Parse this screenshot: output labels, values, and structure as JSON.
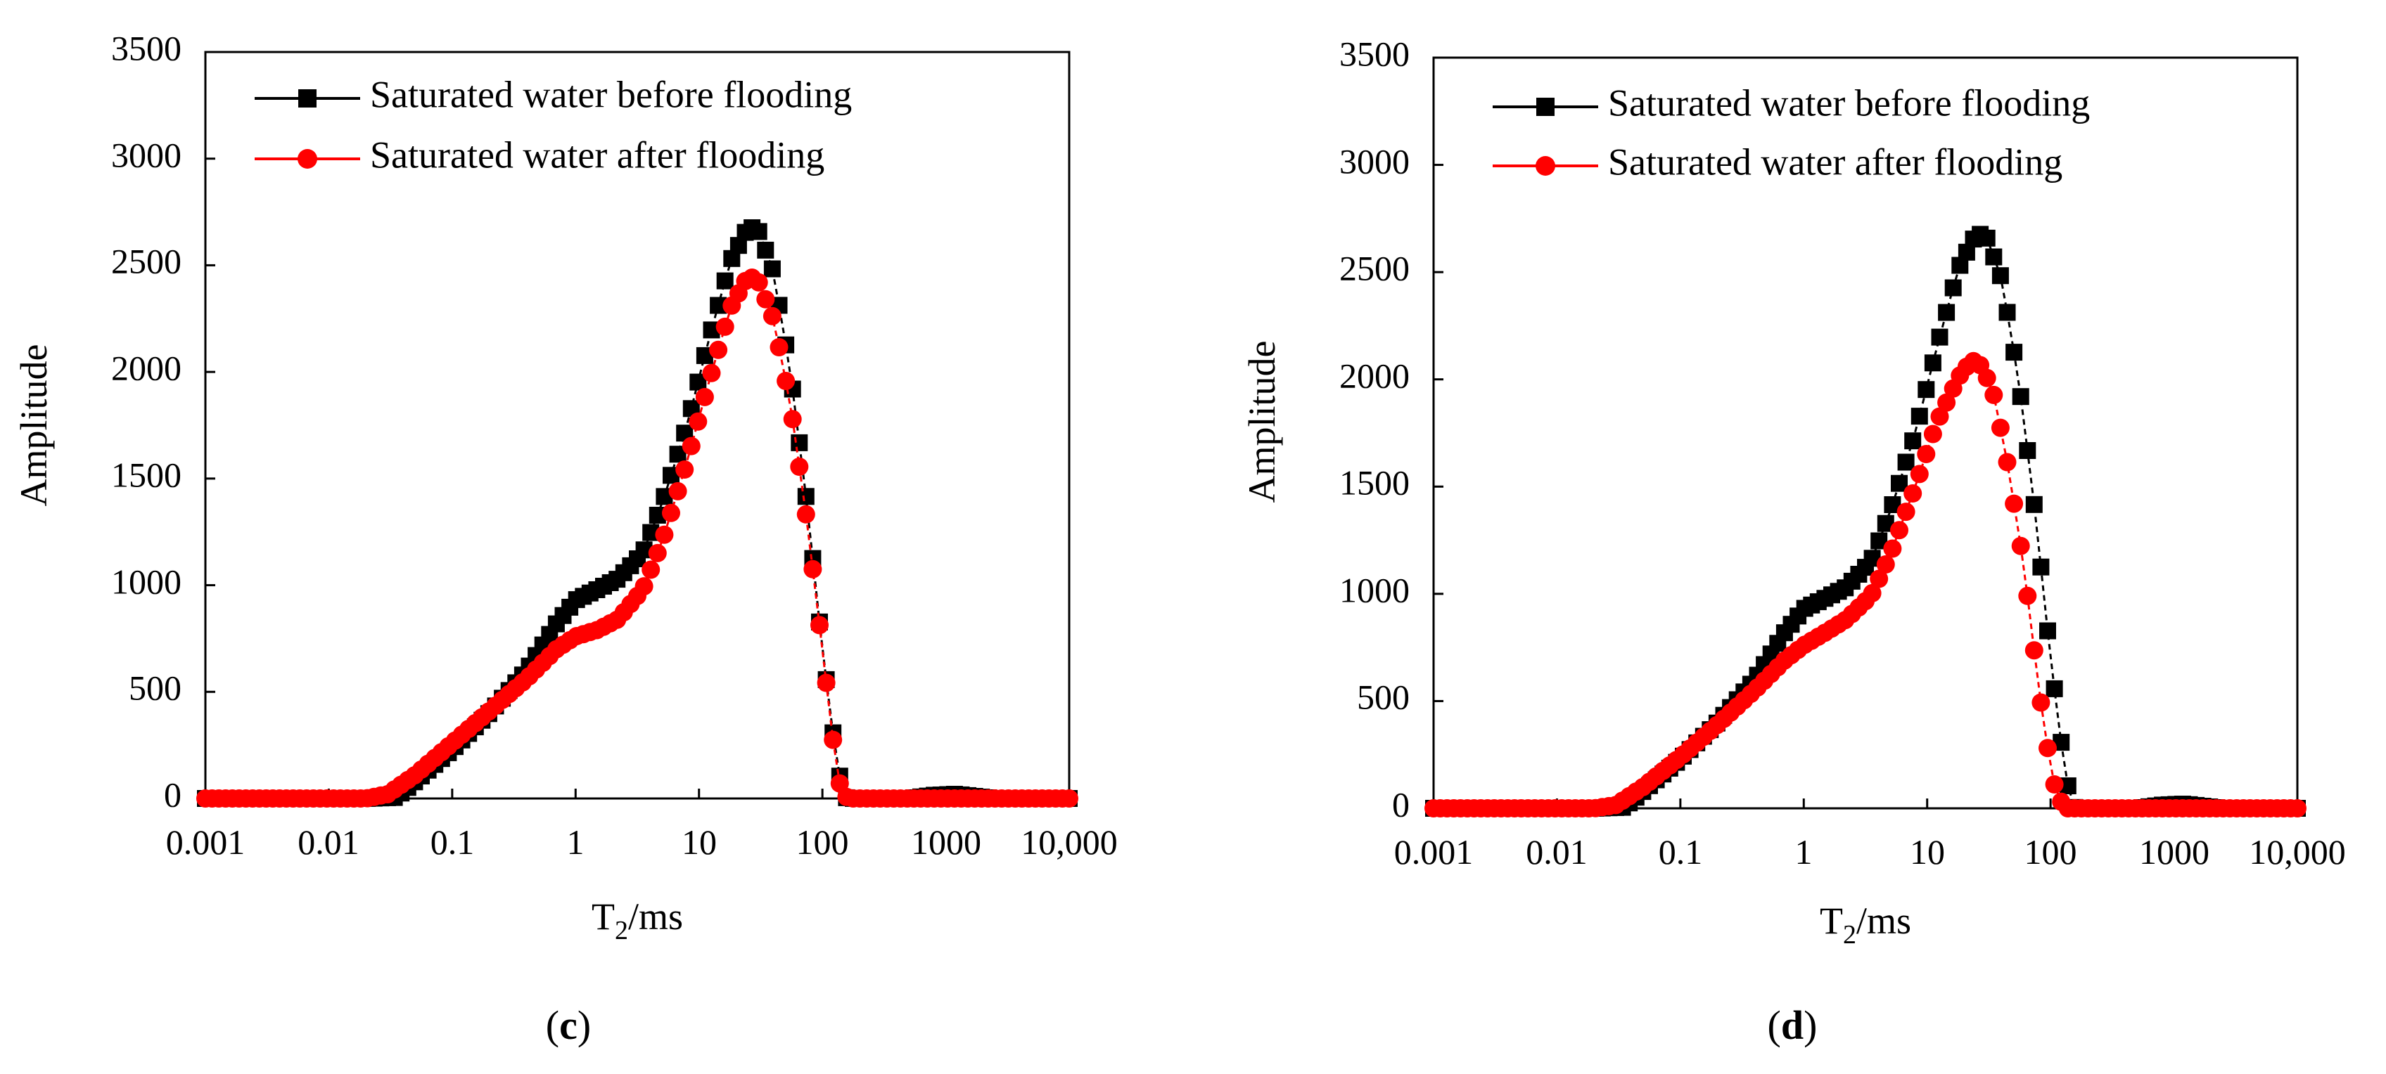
{
  "chart_data": [
    {
      "type": "line",
      "panel_label": {
        "open": "(",
        "letter": "c",
        "close": ")"
      },
      "xlabel": {
        "main": "T",
        "sub": "2",
        "rest": "/ms"
      },
      "ylabel": "Amplitude",
      "x_scale": "log",
      "xlim": [
        0.001,
        10000
      ],
      "ylim": [
        0,
        3500
      ],
      "x_ticks": [
        0.001,
        0.01,
        0.1,
        1,
        10,
        100,
        1000,
        10000
      ],
      "x_tick_labels": [
        "0.001",
        "0.01",
        "0.1",
        "1",
        "10",
        "100",
        "1000",
        "10,000"
      ],
      "y_ticks": [
        0,
        500,
        1000,
        1500,
        2000,
        2500,
        3000,
        3500
      ],
      "y_tick_labels": [
        "0",
        "500",
        "1000",
        "1500",
        "2000",
        "2500",
        "3000",
        "3500"
      ],
      "legend_position": "top-left",
      "series": [
        {
          "name": "Saturated water before flooding",
          "color": "#000000",
          "marker": "square",
          "key_points": [
            [
              0.001,
              0
            ],
            [
              0.02,
              0
            ],
            [
              0.035,
              5
            ],
            [
              0.05,
              80
            ],
            [
              0.1,
              230
            ],
            [
              0.2,
              400
            ],
            [
              0.4,
              600
            ],
            [
              0.7,
              820
            ],
            [
              1.0,
              930
            ],
            [
              1.5,
              980
            ],
            [
              2.2,
              1030
            ],
            [
              3.5,
              1150
            ],
            [
              5,
              1380
            ],
            [
              8,
              1750
            ],
            [
              12,
              2150
            ],
            [
              18,
              2520
            ],
            [
              25,
              2680
            ],
            [
              30,
              2670
            ],
            [
              40,
              2470
            ],
            [
              55,
              2000
            ],
            [
              75,
              1380
            ],
            [
              100,
              700
            ],
            [
              130,
              180
            ],
            [
              150,
              5
            ],
            [
              180,
              0
            ],
            [
              500,
              0
            ],
            [
              800,
              15
            ],
            [
              1200,
              20
            ],
            [
              1700,
              10
            ],
            [
              2500,
              0
            ],
            [
              10000,
              0
            ]
          ]
        },
        {
          "name": "Saturated water after flooding",
          "color": "#ff0000",
          "marker": "circle",
          "key_points": [
            [
              0.001,
              0
            ],
            [
              0.02,
              0
            ],
            [
              0.03,
              20
            ],
            [
              0.05,
              110
            ],
            [
              0.1,
              260
            ],
            [
              0.2,
              410
            ],
            [
              0.4,
              560
            ],
            [
              0.7,
              700
            ],
            [
              1.0,
              760
            ],
            [
              1.5,
              790
            ],
            [
              2.2,
              840
            ],
            [
              3.5,
              980
            ],
            [
              5,
              1200
            ],
            [
              8,
              1580
            ],
            [
              12,
              1950
            ],
            [
              18,
              2300
            ],
            [
              25,
              2450
            ],
            [
              30,
              2430
            ],
            [
              40,
              2250
            ],
            [
              55,
              1850
            ],
            [
              75,
              1300
            ],
            [
              100,
              700
            ],
            [
              120,
              300
            ],
            [
              140,
              50
            ],
            [
              160,
              0
            ],
            [
              10000,
              0
            ]
          ]
        }
      ]
    },
    {
      "type": "line",
      "panel_label": {
        "open": "(",
        "letter": "d",
        "close": ")"
      },
      "xlabel": {
        "main": "T",
        "sub": "2",
        "rest": "/ms"
      },
      "ylabel": "Amplitude",
      "x_scale": "log",
      "xlim": [
        0.001,
        10000
      ],
      "ylim": [
        0,
        3500
      ],
      "x_ticks": [
        0.001,
        0.01,
        0.1,
        1,
        10,
        100,
        1000,
        10000
      ],
      "x_tick_labels": [
        "0.001",
        "0.01",
        "0.1",
        "1",
        "10",
        "100",
        "1000",
        "10,000"
      ],
      "y_ticks": [
        0,
        500,
        1000,
        1500,
        2000,
        2500,
        3000,
        3500
      ],
      "y_tick_labels": [
        "0",
        "500",
        "1000",
        "1500",
        "2000",
        "2500",
        "3000",
        "3500"
      ],
      "legend_position": "top-left",
      "series": [
        {
          "name": "Saturated water before flooding",
          "color": "#000000",
          "marker": "square",
          "key_points": [
            [
              0.001,
              0
            ],
            [
              0.02,
              0
            ],
            [
              0.035,
              5
            ],
            [
              0.05,
              80
            ],
            [
              0.1,
              230
            ],
            [
              0.2,
              400
            ],
            [
              0.4,
              600
            ],
            [
              0.7,
              820
            ],
            [
              1.0,
              930
            ],
            [
              1.5,
              980
            ],
            [
              2.2,
              1030
            ],
            [
              3.5,
              1150
            ],
            [
              5,
              1380
            ],
            [
              8,
              1750
            ],
            [
              12,
              2150
            ],
            [
              18,
              2520
            ],
            [
              25,
              2680
            ],
            [
              30,
              2670
            ],
            [
              40,
              2470
            ],
            [
              55,
              2000
            ],
            [
              75,
              1380
            ],
            [
              100,
              700
            ],
            [
              130,
              180
            ],
            [
              150,
              5
            ],
            [
              180,
              0
            ],
            [
              500,
              0
            ],
            [
              800,
              15
            ],
            [
              1200,
              20
            ],
            [
              1700,
              10
            ],
            [
              2500,
              0
            ],
            [
              10000,
              0
            ]
          ]
        },
        {
          "name": "Saturated water after flooding",
          "color": "#ff0000",
          "marker": "circle",
          "key_points": [
            [
              0.001,
              0
            ],
            [
              0.02,
              0
            ],
            [
              0.03,
              15
            ],
            [
              0.05,
              100
            ],
            [
              0.1,
              240
            ],
            [
              0.2,
              390
            ],
            [
              0.4,
              550
            ],
            [
              0.7,
              690
            ],
            [
              1.0,
              760
            ],
            [
              1.5,
              820
            ],
            [
              2.2,
              880
            ],
            [
              3.5,
              990
            ],
            [
              5,
              1180
            ],
            [
              8,
              1500
            ],
            [
              12,
              1800
            ],
            [
              18,
              2010
            ],
            [
              23,
              2090
            ],
            [
              28,
              2060
            ],
            [
              35,
              1920
            ],
            [
              45,
              1600
            ],
            [
              60,
              1150
            ],
            [
              75,
              700
            ],
            [
              90,
              350
            ],
            [
              110,
              80
            ],
            [
              130,
              0
            ],
            [
              10000,
              0
            ]
          ]
        }
      ]
    }
  ]
}
